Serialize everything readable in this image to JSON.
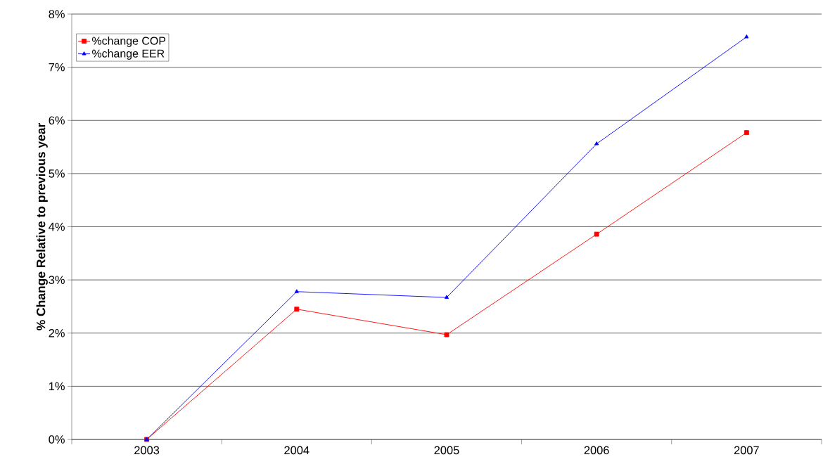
{
  "chart_data": {
    "type": "line",
    "ylabel": "% Change Relative to previous year",
    "categories": [
      "2003",
      "2004",
      "2005",
      "2006",
      "2007"
    ],
    "series": [
      {
        "name": "%change COP",
        "color": "#ff0000",
        "marker": "square",
        "values": [
          0,
          2.45,
          1.97,
          3.86,
          5.77
        ]
      },
      {
        "name": "%change EER",
        "color": "#0000ff",
        "marker": "triangle",
        "values": [
          0,
          2.78,
          2.67,
          5.56,
          7.57
        ]
      }
    ],
    "ylim": [
      0,
      8
    ],
    "yticks": [
      {
        "value": 0,
        "label": "0%"
      },
      {
        "value": 1,
        "label": "1%"
      },
      {
        "value": 2,
        "label": "2%"
      },
      {
        "value": 3,
        "label": "3%"
      },
      {
        "value": 4,
        "label": "4%"
      },
      {
        "value": 5,
        "label": "5%"
      },
      {
        "value": 6,
        "label": "6%"
      },
      {
        "value": 7,
        "label": "7%"
      },
      {
        "value": 8,
        "label": "8%"
      }
    ],
    "grid": "y",
    "legend": "top left",
    "line_style": "solid"
  }
}
